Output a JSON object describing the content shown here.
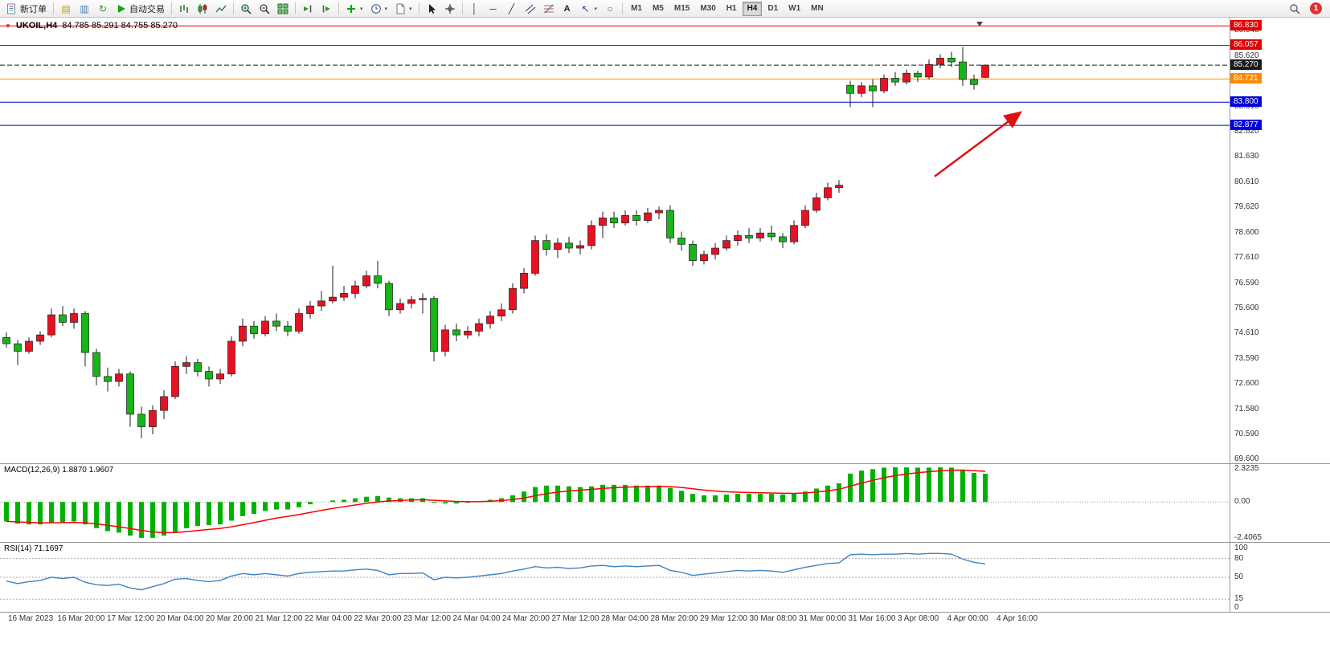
{
  "toolbar": {
    "new_order_label": "新订单",
    "auto_trading_label": "自动交易",
    "text_tool_label": "A",
    "timeframes": [
      "M1",
      "M5",
      "M15",
      "M30",
      "H1",
      "H4",
      "D1",
      "W1",
      "MN"
    ],
    "active_timeframe": "H4",
    "notification_count": "1"
  },
  "chart": {
    "symbol_period": "UKOIL,H4",
    "ohlc": "84.785 85.291 84.755 85.270"
  },
  "panes": {
    "macd_label": "MACD(12,26,9) 1.8870 1.9607",
    "rsi_label": "RSI(14) 71.1697"
  },
  "colors": {
    "up_candle": "#e81123",
    "down_candle": "#17b517",
    "wick": "#1c1c1c",
    "macd_histogram": "#00b200",
    "macd_signal": "#ff0000",
    "rsi_line": "#3e84c4",
    "annotation_arrow": "#e01010"
  },
  "chart_data": [
    {
      "type": "candlestick",
      "symbol": "UKOIL",
      "period": "H4",
      "y_range": [
        69.45,
        87.03
      ],
      "y_ticks": [
        "86.640",
        "85.620",
        "84.630",
        "83.610",
        "82.620",
        "81.630",
        "80.610",
        "79.620",
        "78.600",
        "77.610",
        "76.590",
        "75.600",
        "74.610",
        "73.590",
        "72.600",
        "71.580",
        "70.590",
        "69.600"
      ],
      "horizontal_lines": [
        {
          "price": 86.83,
          "label": "86.830",
          "color": "#e00000",
          "style": "solid"
        },
        {
          "price": 86.057,
          "label": "86.057",
          "color": "#e00000",
          "style": "solid"
        },
        {
          "price": 85.27,
          "label": "85.270",
          "color": "#1a1a1a",
          "style": "dashed",
          "role": "bid-price"
        },
        {
          "price": 84.721,
          "label": "84.721",
          "color": "#ff8800",
          "style": "solid"
        },
        {
          "price": 83.8,
          "label": "83.800",
          "color": "#0000dd",
          "style": "solid"
        },
        {
          "price": 82.877,
          "label": "82.877",
          "color": "#0000dd",
          "style": "solid"
        }
      ],
      "x_labels": [
        "16 Mar 2023",
        "16 Mar 20:00",
        "17 Mar 12:00",
        "20 Mar 04:00",
        "20 Mar 20:00",
        "21 Mar 12:00",
        "22 Mar 04:00",
        "22 Mar 20:00",
        "23 Mar 12:00",
        "24 Mar 04:00",
        "24 Mar 20:00",
        "27 Mar 12:00",
        "28 Mar 04:00",
        "28 Mar 20:00",
        "29 Mar 12:00",
        "30 Mar 08:00",
        "31 Mar 00:00",
        "31 Mar 16:00",
        "3 Apr 08:00",
        "4 Apr 00:00",
        "4 Apr 16:00"
      ],
      "candles": [
        [
          74.45,
          74.65,
          74.05,
          74.2
        ],
        [
          74.2,
          74.35,
          73.35,
          73.9
        ],
        [
          73.9,
          74.45,
          73.8,
          74.3
        ],
        [
          74.3,
          74.7,
          74.15,
          74.55
        ],
        [
          74.55,
          75.6,
          74.45,
          75.35
        ],
        [
          75.35,
          75.7,
          74.9,
          75.05
        ],
        [
          75.05,
          75.6,
          74.8,
          75.4
        ],
        [
          75.4,
          75.5,
          73.3,
          73.85
        ],
        [
          73.85,
          74.0,
          72.55,
          72.9
        ],
        [
          72.9,
          73.25,
          72.3,
          72.7
        ],
        [
          72.7,
          73.2,
          72.5,
          73.0
        ],
        [
          73.0,
          73.1,
          70.9,
          71.4
        ],
        [
          71.4,
          71.7,
          70.45,
          70.9
        ],
        [
          70.9,
          71.75,
          70.6,
          71.55
        ],
        [
          71.55,
          72.35,
          71.2,
          72.1
        ],
        [
          72.1,
          73.5,
          72.0,
          73.3
        ],
        [
          73.3,
          73.7,
          73.0,
          73.45
        ],
        [
          73.45,
          73.6,
          72.9,
          73.1
        ],
        [
          73.1,
          73.3,
          72.5,
          72.8
        ],
        [
          72.8,
          73.2,
          72.6,
          73.0
        ],
        [
          73.0,
          74.5,
          72.9,
          74.3
        ],
        [
          74.3,
          75.2,
          74.1,
          74.9
        ],
        [
          74.9,
          75.1,
          74.4,
          74.6
        ],
        [
          74.6,
          75.3,
          74.5,
          75.1
        ],
        [
          75.1,
          75.4,
          74.7,
          74.9
        ],
        [
          74.9,
          75.1,
          74.5,
          74.7
        ],
        [
          74.7,
          75.6,
          74.6,
          75.4
        ],
        [
          75.4,
          75.9,
          75.2,
          75.7
        ],
        [
          75.7,
          76.3,
          75.5,
          75.9
        ],
        [
          75.9,
          77.3,
          75.8,
          76.05
        ],
        [
          76.05,
          76.5,
          75.9,
          76.2
        ],
        [
          76.2,
          76.7,
          76.0,
          76.5
        ],
        [
          76.5,
          77.1,
          76.4,
          76.9
        ],
        [
          76.9,
          77.5,
          76.4,
          76.6
        ],
        [
          76.6,
          76.7,
          75.3,
          75.55
        ],
        [
          75.55,
          76.0,
          75.4,
          75.8
        ],
        [
          75.8,
          76.1,
          75.6,
          75.95
        ],
        [
          75.95,
          76.2,
          75.4,
          76.0
        ],
        [
          76.0,
          76.1,
          73.5,
          73.9
        ],
        [
          73.9,
          74.95,
          73.7,
          74.75
        ],
        [
          74.75,
          75.0,
          74.3,
          74.55
        ],
        [
          74.55,
          74.9,
          74.4,
          74.7
        ],
        [
          74.7,
          75.2,
          74.5,
          75.0
        ],
        [
          75.0,
          75.5,
          74.8,
          75.3
        ],
        [
          75.3,
          75.8,
          75.1,
          75.55
        ],
        [
          75.55,
          76.6,
          75.4,
          76.4
        ],
        [
          76.4,
          77.2,
          76.2,
          77.0
        ],
        [
          77.0,
          78.5,
          76.9,
          78.3
        ],
        [
          78.3,
          78.55,
          77.7,
          77.95
        ],
        [
          77.95,
          78.4,
          77.6,
          78.2
        ],
        [
          78.2,
          78.45,
          77.8,
          78.0
        ],
        [
          78.0,
          78.3,
          77.75,
          78.1
        ],
        [
          78.1,
          79.1,
          77.95,
          78.9
        ],
        [
          78.9,
          79.45,
          78.4,
          79.2
        ],
        [
          79.2,
          79.45,
          78.8,
          79.0
        ],
        [
          79.0,
          79.5,
          78.9,
          79.3
        ],
        [
          79.3,
          79.5,
          78.9,
          79.1
        ],
        [
          79.1,
          79.6,
          79.0,
          79.4
        ],
        [
          79.4,
          79.65,
          79.15,
          79.5
        ],
        [
          79.5,
          79.7,
          78.2,
          78.4
        ],
        [
          78.4,
          78.65,
          77.9,
          78.15
        ],
        [
          78.15,
          78.3,
          77.3,
          77.5
        ],
        [
          77.5,
          77.9,
          77.35,
          77.75
        ],
        [
          77.75,
          78.2,
          77.55,
          78.0
        ],
        [
          78.0,
          78.5,
          77.9,
          78.3
        ],
        [
          78.3,
          78.7,
          78.1,
          78.5
        ],
        [
          78.5,
          78.8,
          78.2,
          78.4
        ],
        [
          78.4,
          78.8,
          78.25,
          78.6
        ],
        [
          78.6,
          78.9,
          78.3,
          78.45
        ],
        [
          78.45,
          78.6,
          78.0,
          78.25
        ],
        [
          78.25,
          79.1,
          78.15,
          78.9
        ],
        [
          78.9,
          79.7,
          78.8,
          79.5
        ],
        [
          79.5,
          80.2,
          79.4,
          80.0
        ],
        [
          80.0,
          80.6,
          79.9,
          80.4
        ],
        [
          80.4,
          80.7,
          80.2,
          80.5
        ],
        [
          84.47,
          84.65,
          83.6,
          84.15
        ],
        [
          84.15,
          84.6,
          84.0,
          84.45
        ],
        [
          84.45,
          84.7,
          83.6,
          84.25
        ],
        [
          84.25,
          84.9,
          84.15,
          84.75
        ],
        [
          84.75,
          85.0,
          84.45,
          84.6
        ],
        [
          84.6,
          85.1,
          84.5,
          84.95
        ],
        [
          84.95,
          85.05,
          84.6,
          84.8
        ],
        [
          84.8,
          85.5,
          84.7,
          85.3
        ],
        [
          85.3,
          85.7,
          85.15,
          85.55
        ],
        [
          85.55,
          85.8,
          85.2,
          85.4
        ],
        [
          85.4,
          86.0,
          84.45,
          84.7
        ],
        [
          84.7,
          84.9,
          84.3,
          84.5
        ],
        [
          84.785,
          85.291,
          84.755,
          85.27
        ]
      ],
      "arrow_annotation": {
        "from_bar": 82.5,
        "from_price": 80.85,
        "to_bar": 90,
        "to_price": 83.35
      },
      "shift_marker_bar": 86.5
    },
    {
      "type": "bar",
      "name": "MACD(12,26,9)",
      "current_values": "1.8870 1.9607",
      "y_range": [
        -2.4065,
        2.3235
      ],
      "scale_labels": [
        "2.3235",
        "0.00",
        "-2.4065"
      ],
      "signal_period": 9,
      "values": [
        -1.3,
        -1.45,
        -1.5,
        -1.5,
        -1.4,
        -1.35,
        -1.3,
        -1.5,
        -1.75,
        -1.95,
        -2.05,
        -2.25,
        -2.4,
        -2.4,
        -2.25,
        -2.0,
        -1.75,
        -1.6,
        -1.55,
        -1.5,
        -1.25,
        -0.95,
        -0.8,
        -0.6,
        -0.5,
        -0.5,
        -0.35,
        -0.15,
        0.0,
        0.1,
        0.15,
        0.25,
        0.35,
        0.4,
        0.3,
        0.25,
        0.25,
        0.25,
        -0.05,
        -0.1,
        -0.1,
        -0.05,
        0.05,
        0.15,
        0.25,
        0.45,
        0.7,
        1.0,
        1.1,
        1.1,
        1.05,
        1.0,
        1.05,
        1.15,
        1.15,
        1.15,
        1.1,
        1.1,
        1.1,
        0.95,
        0.75,
        0.55,
        0.45,
        0.45,
        0.5,
        0.55,
        0.55,
        0.55,
        0.55,
        0.5,
        0.55,
        0.7,
        0.9,
        1.1,
        1.25,
        1.9,
        2.1,
        2.2,
        2.3,
        2.3235,
        2.32,
        2.3,
        2.3,
        2.32,
        2.3,
        2.15,
        1.95,
        1.887
      ]
    },
    {
      "type": "line",
      "name": "RSI(14)",
      "current_value": "71.1697",
      "y_range": [
        0,
        100
      ],
      "levels": [
        80,
        50,
        15
      ],
      "scale_labels": [
        "100",
        "80",
        "50",
        "15",
        "0"
      ],
      "values": [
        44,
        40,
        43,
        45,
        50,
        48,
        50,
        42,
        38,
        37,
        39,
        33,
        30,
        35,
        40,
        47,
        48,
        45,
        43,
        45,
        52,
        56,
        54,
        56,
        54,
        52,
        56,
        58,
        59,
        60,
        60,
        62,
        63,
        61,
        54,
        56,
        56,
        57,
        46,
        50,
        49,
        50,
        52,
        54,
        56,
        60,
        63,
        67,
        65,
        66,
        64,
        65,
        68,
        69,
        67,
        68,
        67,
        68,
        69,
        61,
        58,
        53,
        55,
        57,
        59,
        61,
        60,
        61,
        60,
        58,
        62,
        66,
        69,
        72,
        73,
        86,
        87,
        86,
        87,
        87,
        88,
        87,
        88,
        88,
        87,
        79,
        74,
        71.17
      ]
    }
  ]
}
